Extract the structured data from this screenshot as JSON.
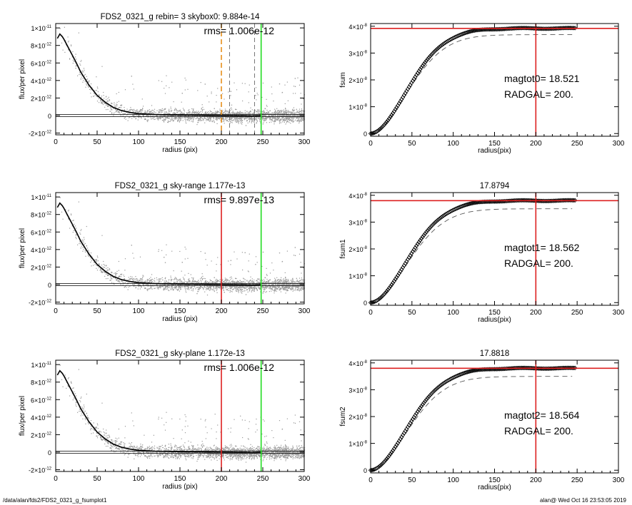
{
  "footer": {
    "path": "/data/alan/fds2/FDS2_0321_g_fsumplot1",
    "stamp": "alan@  Wed Oct 16 23:53:05 2019"
  },
  "colors": {
    "scatter": "#9a9a9a",
    "profile": "#000000",
    "orange": "#e8901c",
    "red": "#dd2020",
    "green": "#22dd22",
    "curve": "#000000",
    "dashed": "#555555"
  },
  "chart_data": [
    {
      "type": "scatter",
      "panel": "left-1",
      "title": "FDS2_0321_g rebin= 3    skybox0:  9.884e-14",
      "annotation": "rms= 1.006e-12",
      "xlabel": "radius (pix)",
      "ylabel": "flux/per pixel",
      "xlim": [
        0,
        300
      ],
      "ylim": [
        -2.2e-12,
        1.05e-11
      ],
      "xticks": [
        "0",
        "50",
        "100",
        "150",
        "200",
        "250",
        "300"
      ],
      "yticks": [
        {
          "v": 1e-11,
          "m": "1×10",
          "e": "-11"
        },
        {
          "v": 8e-12,
          "m": "8×10",
          "e": "-12"
        },
        {
          "v": 6e-12,
          "m": "6×10",
          "e": "-12"
        },
        {
          "v": 4e-12,
          "m": "4×10",
          "e": "-12"
        },
        {
          "v": 2e-12,
          "m": "2×10",
          "e": "-12"
        },
        {
          "v": 0,
          "m": "0",
          "e": ""
        },
        {
          "v": -2e-12,
          "m": "-2×10",
          "e": "-12"
        }
      ],
      "profile": {
        "x": [
          2,
          5,
          8,
          10,
          15,
          20,
          25,
          30,
          40,
          50,
          60,
          70,
          80,
          90,
          100,
          120,
          140,
          160,
          180,
          200,
          220,
          240,
          248
        ],
        "y": [
          8.8e-12,
          9.3e-12,
          9e-12,
          8.7e-12,
          7.8e-12,
          6.9e-12,
          6e-12,
          5e-12,
          3.5e-12,
          2.3e-12,
          1.5e-12,
          9e-13,
          5.5e-13,
          3.5e-13,
          2.2e-13,
          1.2e-13,
          7e-14,
          4e-14,
          2e-14,
          0.0,
          -2e-14,
          -4e-14,
          0.0
        ]
      },
      "vlines": [
        {
          "x": 200,
          "color": "orange",
          "dash": true
        },
        {
          "x": 210,
          "color": "dashed",
          "dash": true
        },
        {
          "x": 240,
          "color": "dashed",
          "dash": true
        },
        {
          "x": 248,
          "color": "green",
          "dash": false
        }
      ],
      "hline": 0
    },
    {
      "type": "line",
      "panel": "right-1",
      "title": "",
      "ylabel": "fsum",
      "xlabel": "radius(pix)",
      "xlim": [
        0,
        300
      ],
      "ylim": [
        -1e-09,
        4.1e-08
      ],
      "xticks": [
        "0",
        "50",
        "100",
        "150",
        "200",
        "250",
        "300"
      ],
      "yticks": [
        {
          "v": 0,
          "m": "0",
          "e": ""
        },
        {
          "v": 1e-08,
          "m": "1×10",
          "e": "-8"
        },
        {
          "v": 2e-08,
          "m": "2×10",
          "e": "-8"
        },
        {
          "v": 3e-08,
          "m": "3×10",
          "e": "-8"
        },
        {
          "v": 4e-08,
          "m": "4×10",
          "e": "-8"
        }
      ],
      "asymptote": 3.92e-08,
      "dashed_scale": 0.94,
      "dashed_xmax": 245,
      "curve_xmax": 248,
      "vline_x": 200,
      "hline_y": 3.92e-08,
      "labels": [
        "magtot0=  18.521",
        "RADGAL=    200."
      ]
    },
    {
      "type": "scatter",
      "panel": "left-2",
      "title": "FDS2_0321_g sky-range  1.177e-13",
      "annotation": "rms= 9.897e-13",
      "xlabel": "radius (pix)",
      "ylabel": "flux/per pixel",
      "xlim": [
        0,
        300
      ],
      "ylim": [
        -2.2e-12,
        1.05e-11
      ],
      "xticks": [
        "0",
        "50",
        "100",
        "150",
        "200",
        "250",
        "300"
      ],
      "yticks": [
        {
          "v": 1e-11,
          "m": "1×10",
          "e": "-11"
        },
        {
          "v": 8e-12,
          "m": "8×10",
          "e": "-12"
        },
        {
          "v": 6e-12,
          "m": "6×10",
          "e": "-12"
        },
        {
          "v": 4e-12,
          "m": "4×10",
          "e": "-12"
        },
        {
          "v": 2e-12,
          "m": "2×10",
          "e": "-12"
        },
        {
          "v": 0,
          "m": "0",
          "e": ""
        },
        {
          "v": -2e-12,
          "m": "-2×10",
          "e": "-12"
        }
      ],
      "profile": {
        "x": [
          2,
          5,
          8,
          10,
          15,
          20,
          25,
          30,
          40,
          50,
          60,
          70,
          80,
          90,
          100,
          120,
          140,
          160,
          180,
          200,
          220,
          240,
          248
        ],
        "y": [
          8.8e-12,
          9.3e-12,
          9e-12,
          8.7e-12,
          7.8e-12,
          6.9e-12,
          6e-12,
          5e-12,
          3.5e-12,
          2.3e-12,
          1.5e-12,
          9e-13,
          5.5e-13,
          3.5e-13,
          2.2e-13,
          1.2e-13,
          7e-14,
          4e-14,
          2e-14,
          0.0,
          -2e-14,
          -4e-14,
          0.0
        ]
      },
      "vlines": [
        {
          "x": 200,
          "color": "red",
          "dash": false
        },
        {
          "x": 248,
          "color": "green",
          "dash": false
        }
      ],
      "hline": 0
    },
    {
      "type": "line",
      "panel": "right-2",
      "title": "17.8794",
      "ylabel": "fsum1",
      "xlabel": "radius(pix)",
      "xlim": [
        0,
        300
      ],
      "ylim": [
        -1e-09,
        4.1e-08
      ],
      "xticks": [
        "0",
        "50",
        "100",
        "150",
        "200",
        "250",
        "300"
      ],
      "yticks": [
        {
          "v": 0,
          "m": "0",
          "e": ""
        },
        {
          "v": 1e-08,
          "m": "1×10",
          "e": "-8"
        },
        {
          "v": 2e-08,
          "m": "2×10",
          "e": "-8"
        },
        {
          "v": 3e-08,
          "m": "3×10",
          "e": "-8"
        },
        {
          "v": 4e-08,
          "m": "4×10",
          "e": "-8"
        }
      ],
      "asymptote": 3.8e-08,
      "dashed_scale": 0.92,
      "dashed_xmax": 245,
      "curve_xmax": 248,
      "vline_x": 200,
      "hline_y": 3.8e-08,
      "labels": [
        "magtot1=  18.562",
        "RADGAL=    200."
      ]
    },
    {
      "type": "scatter",
      "panel": "left-3",
      "title": "FDS2_0321_g sky-plane  1.172e-13",
      "annotation": "rms= 1.006e-12",
      "xlabel": "radius (pix)",
      "ylabel": "flux/per pixel",
      "xlim": [
        0,
        300
      ],
      "ylim": [
        -2.2e-12,
        1.05e-11
      ],
      "xticks": [
        "0",
        "50",
        "100",
        "150",
        "200",
        "250",
        "300"
      ],
      "yticks": [
        {
          "v": 1e-11,
          "m": "1×10",
          "e": "-11"
        },
        {
          "v": 8e-12,
          "m": "8×10",
          "e": "-12"
        },
        {
          "v": 6e-12,
          "m": "6×10",
          "e": "-12"
        },
        {
          "v": 4e-12,
          "m": "4×10",
          "e": "-12"
        },
        {
          "v": 2e-12,
          "m": "2×10",
          "e": "-12"
        },
        {
          "v": 0,
          "m": "0",
          "e": ""
        },
        {
          "v": -2e-12,
          "m": "-2×10",
          "e": "-12"
        }
      ],
      "profile": {
        "x": [
          2,
          5,
          8,
          10,
          15,
          20,
          25,
          30,
          40,
          50,
          60,
          70,
          80,
          90,
          100,
          120,
          140,
          160,
          180,
          200,
          220,
          240,
          248
        ],
        "y": [
          8.8e-12,
          9.3e-12,
          9e-12,
          8.7e-12,
          7.8e-12,
          6.9e-12,
          6e-12,
          5e-12,
          3.5e-12,
          2.3e-12,
          1.5e-12,
          9e-13,
          5.5e-13,
          3.5e-13,
          2.2e-13,
          1.2e-13,
          7e-14,
          4e-14,
          2e-14,
          0.0,
          -2e-14,
          -4e-14,
          0.0
        ]
      },
      "vlines": [
        {
          "x": 200,
          "color": "red",
          "dash": false
        },
        {
          "x": 248,
          "color": "green",
          "dash": false
        }
      ],
      "hline": 0
    },
    {
      "type": "line",
      "panel": "right-3",
      "title": "17.8818",
      "ylabel": "fsum2",
      "xlabel": "radius(pix)",
      "xlim": [
        0,
        300
      ],
      "ylim": [
        -1e-09,
        4.1e-08
      ],
      "xticks": [
        "0",
        "50",
        "100",
        "150",
        "200",
        "250",
        "300"
      ],
      "yticks": [
        {
          "v": 0,
          "m": "0",
          "e": ""
        },
        {
          "v": 1e-08,
          "m": "1×10",
          "e": "-8"
        },
        {
          "v": 2e-08,
          "m": "2×10",
          "e": "-8"
        },
        {
          "v": 3e-08,
          "m": "3×10",
          "e": "-8"
        },
        {
          "v": 4e-08,
          "m": "4×10",
          "e": "-8"
        }
      ],
      "asymptote": 3.8e-08,
      "dashed_scale": 0.92,
      "dashed_xmax": 245,
      "curve_xmax": 248,
      "vline_x": 200,
      "hline_y": 3.8e-08,
      "labels": [
        "magtot2=  18.564",
        "RADGAL=    200."
      ]
    }
  ]
}
